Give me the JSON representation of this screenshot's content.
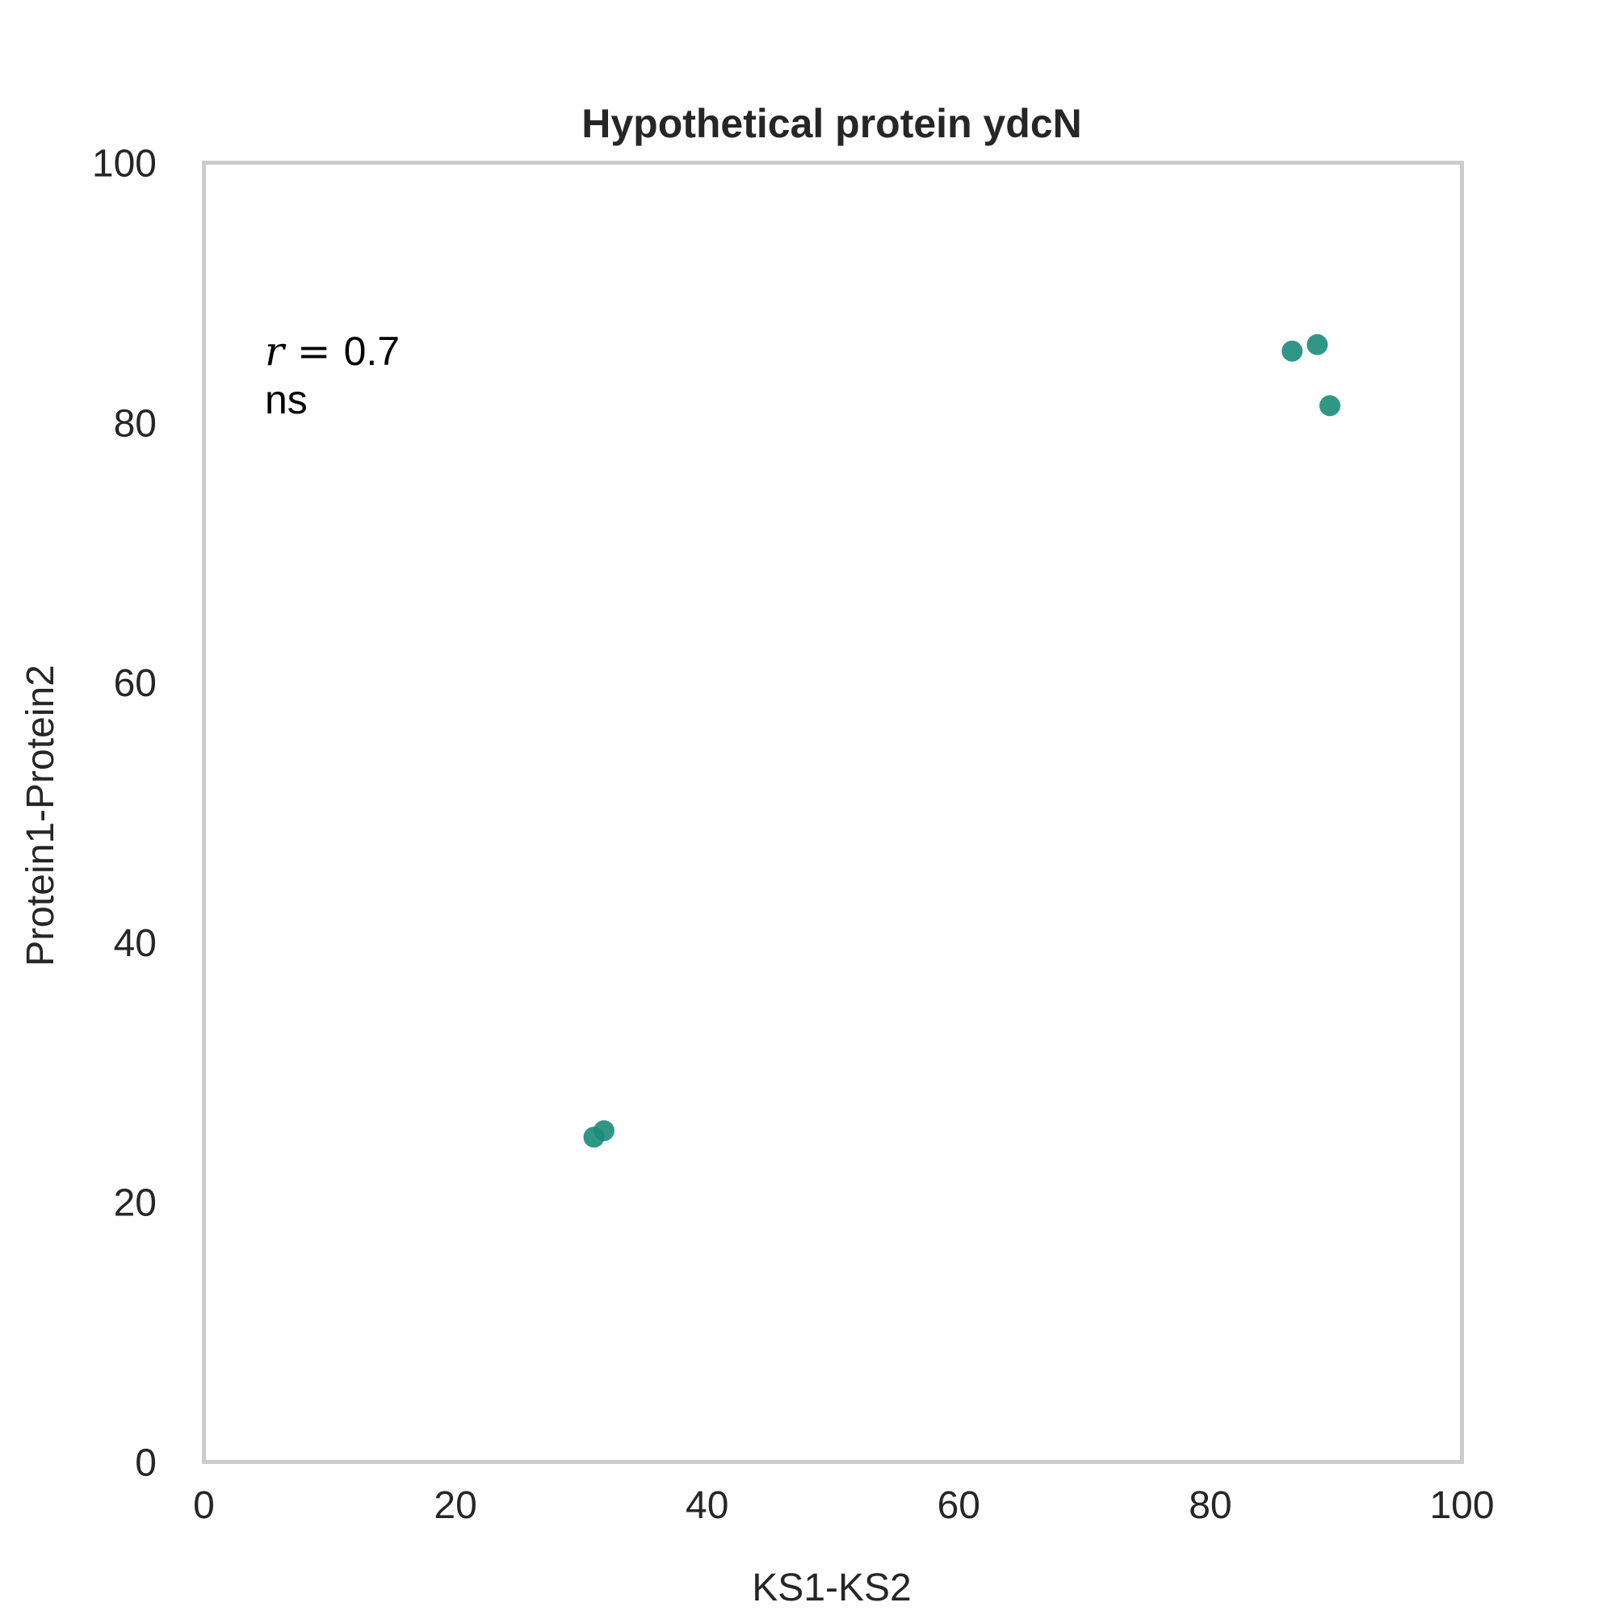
{
  "chart_data": {
    "type": "scatter",
    "title": "Hypothetical protein ydcN",
    "xlabel": "KS1-KS2",
    "ylabel": "Protein1-Protein2",
    "xlim": [
      0,
      100
    ],
    "ylim": [
      0,
      100
    ],
    "xticks": [
      "0",
      "20",
      "40",
      "60",
      "80",
      "100"
    ],
    "yticks": [
      "0",
      "20",
      "40",
      "60",
      "80",
      "100"
    ],
    "grid": false,
    "annotation": {
      "r_symbol": "r",
      "r_equals": " = ",
      "r_value": "0.7",
      "significance": "ns"
    },
    "series": [
      {
        "color": "#1a8c7a",
        "points": [
          {
            "x": 31.0,
            "y": 25.0
          },
          {
            "x": 31.8,
            "y": 25.5
          },
          {
            "x": 86.5,
            "y": 85.5
          },
          {
            "x": 88.5,
            "y": 86.0
          },
          {
            "x": 89.5,
            "y": 81.3
          }
        ]
      }
    ]
  }
}
